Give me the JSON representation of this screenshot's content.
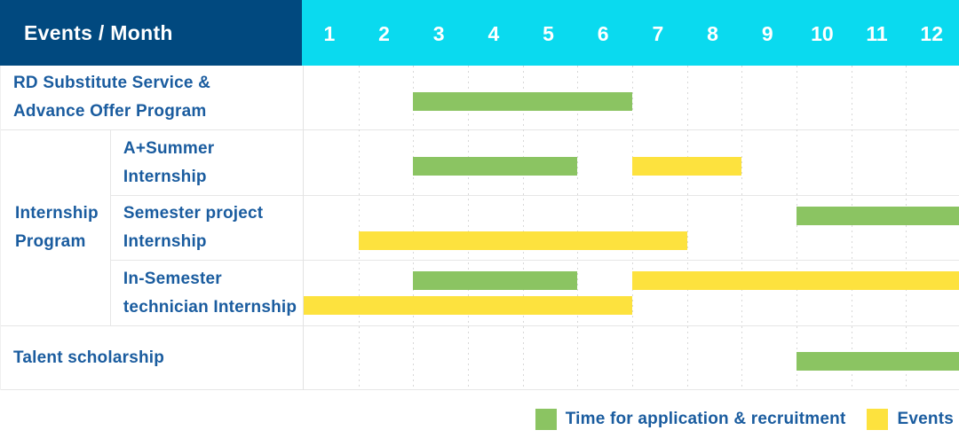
{
  "colors": {
    "header_bg": "#01497F",
    "months_bg": "#0ADAEF",
    "label_text": "#1A5C9F",
    "green": "#8BC462",
    "yellow": "#FDE23E",
    "grid_line": "#D8D8D8",
    "row_line": "#E6E6E6"
  },
  "header": {
    "title": "Events / Month",
    "months": [
      "1",
      "2",
      "3",
      "4",
      "5",
      "6",
      "7",
      "8",
      "9",
      "10",
      "11",
      "12"
    ]
  },
  "legend": {
    "items": [
      {
        "key": "green",
        "label": "Time for application & recruitment"
      },
      {
        "key": "yellow",
        "label": "Events"
      }
    ]
  },
  "chart_data": {
    "type": "bar",
    "subtype": "gantt-timeline",
    "title": "Events / Month",
    "x": {
      "label": "Month",
      "categories": [
        1,
        2,
        3,
        4,
        5,
        6,
        7,
        8,
        9,
        10,
        11,
        12
      ],
      "range": [
        1,
        12
      ]
    },
    "series_legend": {
      "green": "Time for application & recruitment",
      "yellow": "Events"
    },
    "rows": [
      {
        "label": "RD Substitute Service &\nAdvance Offer Program",
        "group": "",
        "bars": [
          {
            "series": "green",
            "start_month": 3,
            "end_month": 6,
            "lane": "mid"
          }
        ]
      },
      {
        "label": "A+Summer\nInternship",
        "group": "Internship\nProgram",
        "bars": [
          {
            "series": "green",
            "start_month": 3,
            "end_month": 5,
            "lane": "mid"
          },
          {
            "series": "yellow",
            "start_month": 7,
            "end_month": 8,
            "lane": "mid"
          }
        ]
      },
      {
        "label": "Semester project\nInternship",
        "group": "Internship\nProgram",
        "bars": [
          {
            "series": "green",
            "start_month": 10,
            "end_month": 12,
            "lane": "top"
          },
          {
            "series": "yellow",
            "start_month": 2,
            "end_month": 7,
            "lane": "bottom"
          }
        ]
      },
      {
        "label": "In-Semester\ntechnician Internship",
        "group": "Internship\nProgram",
        "bars": [
          {
            "series": "green",
            "start_month": 3,
            "end_month": 5,
            "lane": "top"
          },
          {
            "series": "yellow",
            "start_month": 7,
            "end_month": 12,
            "lane": "top"
          },
          {
            "series": "yellow",
            "start_month": 1,
            "end_month": 6,
            "lane": "bottom"
          }
        ]
      },
      {
        "label": "Talent scholarship",
        "group": "",
        "bars": [
          {
            "series": "green",
            "start_month": 10,
            "end_month": 12,
            "lane": "mid"
          }
        ]
      }
    ]
  }
}
